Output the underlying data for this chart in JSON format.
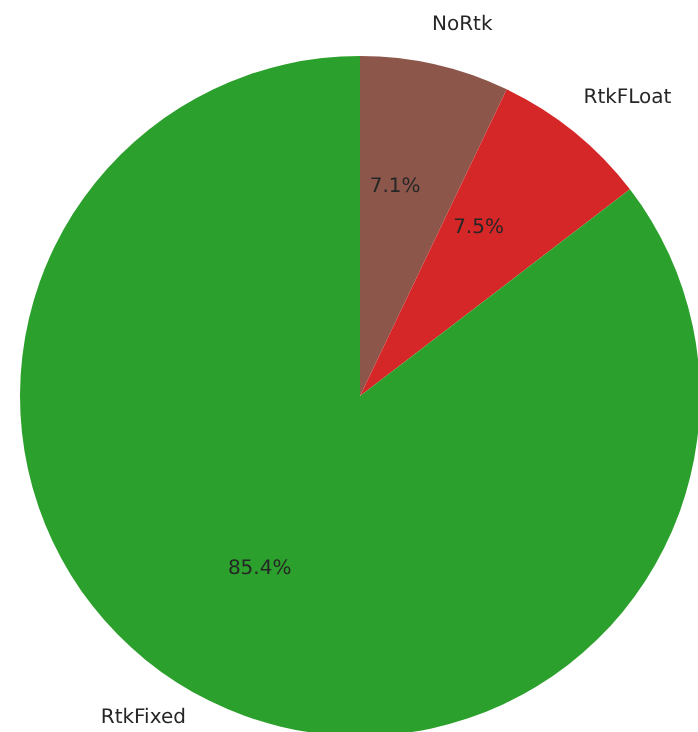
{
  "chart_data": {
    "type": "pie",
    "categories": [
      "NoRtk",
      "RtkFLoat",
      "RtkFixed"
    ],
    "values": [
      7.1,
      7.5,
      85.4
    ],
    "colors": [
      "#8c564b",
      "#d62728",
      "#2ca02c"
    ],
    "value_labels": [
      "7.1%",
      "7.5%",
      "85.4%"
    ]
  }
}
